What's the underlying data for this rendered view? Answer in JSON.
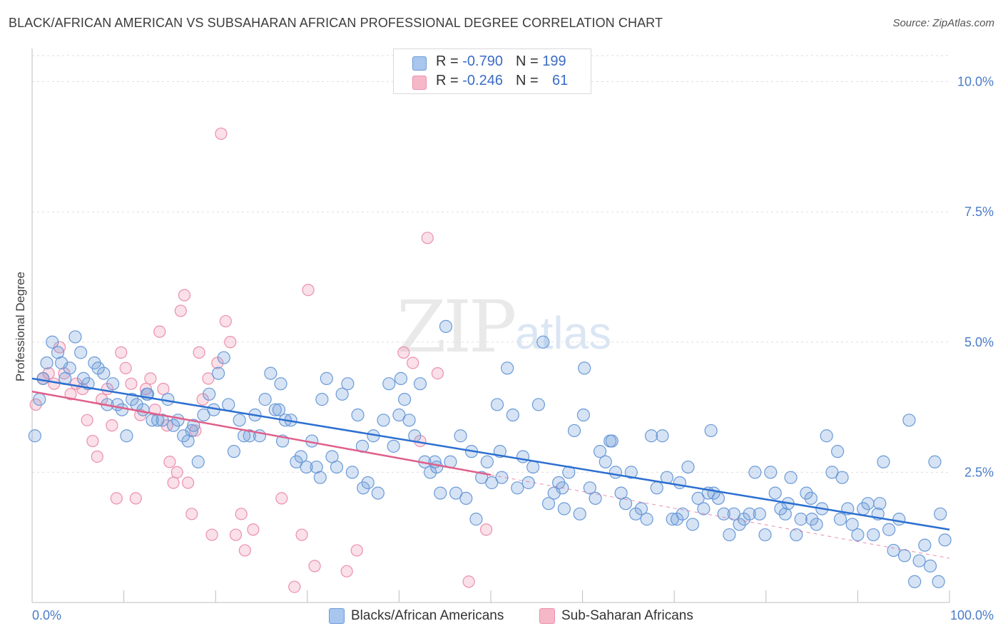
{
  "title": "BLACK/AFRICAN AMERICAN VS SUBSAHARAN AFRICAN PROFESSIONAL DEGREE CORRELATION CHART",
  "source": "Source: ZipAtlas.com",
  "watermark": {
    "zip": "ZIP",
    "atlas": "atlas"
  },
  "legend": {
    "rows": [
      {
        "r_label": "R = ",
        "r_value": "-0.790",
        "n_label": "N = ",
        "n_value": "199",
        "color": "#a8c6ee"
      },
      {
        "r_label": "R = ",
        "r_value": "-0.246",
        "n_label": "N = ",
        "n_value": "61",
        "color": "#f6b8c9"
      }
    ]
  },
  "bottom_legend": [
    {
      "label": "Blacks/African Americans",
      "color": "#a8c6ee"
    },
    {
      "label": "Sub-Saharan Africans",
      "color": "#f6b8c9"
    }
  ],
  "chart_data": {
    "type": "scatter",
    "ylabel": "Professional Degree",
    "xlabel": "",
    "xlim": [
      0,
      100
    ],
    "ylim": [
      0,
      10.5
    ],
    "x_tick_labels": [
      "0.0%",
      "100.0%"
    ],
    "y_ticks": [
      2.5,
      5.0,
      7.5,
      10.0
    ],
    "y_tick_labels": [
      "2.5%",
      "5.0%",
      "7.5%",
      "10.0%"
    ],
    "grid": true,
    "colors": {
      "blue": "#6a9ad8",
      "blue_line": "#2b6fd0",
      "pink": "#ec8fab",
      "pink_line": "#e05f8a"
    },
    "series": [
      {
        "name": "Blacks/African Americans",
        "trend": {
          "x": [
            0,
            100
          ],
          "y": [
            4.3,
            1.4
          ]
        },
        "points": [
          [
            0.3,
            3.2
          ],
          [
            0.8,
            3.9
          ],
          [
            1.2,
            4.3
          ],
          [
            1.6,
            4.6
          ],
          [
            2.2,
            5.0
          ],
          [
            2.8,
            4.8
          ],
          [
            3.2,
            4.6
          ],
          [
            3.6,
            4.3
          ],
          [
            4.1,
            4.5
          ],
          [
            4.7,
            5.1
          ],
          [
            5.3,
            4.8
          ],
          [
            5.6,
            4.3
          ],
          [
            6.1,
            4.2
          ],
          [
            6.8,
            4.6
          ],
          [
            7.2,
            4.5
          ],
          [
            7.8,
            4.4
          ],
          [
            8.2,
            3.8
          ],
          [
            8.8,
            4.2
          ],
          [
            9.3,
            3.8
          ],
          [
            9.8,
            3.7
          ],
          [
            10.3,
            3.2
          ],
          [
            10.9,
            3.9
          ],
          [
            11.4,
            3.8
          ],
          [
            12.1,
            3.7
          ],
          [
            12.6,
            4.0
          ],
          [
            13.1,
            3.5
          ],
          [
            13.7,
            3.5
          ],
          [
            14.2,
            3.5
          ],
          [
            14.8,
            3.9
          ],
          [
            15.4,
            3.4
          ],
          [
            15.9,
            3.5
          ],
          [
            16.5,
            3.2
          ],
          [
            17.0,
            3.1
          ],
          [
            17.6,
            3.4
          ],
          [
            18.1,
            2.7
          ],
          [
            18.7,
            3.6
          ],
          [
            19.3,
            4.0
          ],
          [
            19.8,
            3.7
          ],
          [
            20.3,
            4.4
          ],
          [
            20.9,
            4.7
          ],
          [
            21.4,
            3.8
          ],
          [
            22.0,
            2.9
          ],
          [
            22.6,
            3.5
          ],
          [
            23.1,
            3.2
          ],
          [
            23.7,
            3.2
          ],
          [
            24.3,
            3.6
          ],
          [
            24.8,
            3.2
          ],
          [
            25.4,
            3.9
          ],
          [
            26.0,
            4.4
          ],
          [
            26.5,
            3.7
          ],
          [
            27.1,
            4.2
          ],
          [
            27.6,
            3.5
          ],
          [
            28.2,
            3.5
          ],
          [
            28.8,
            2.7
          ],
          [
            29.3,
            2.8
          ],
          [
            29.9,
            2.6
          ],
          [
            30.5,
            3.1
          ],
          [
            31.0,
            2.6
          ],
          [
            31.6,
            3.9
          ],
          [
            32.1,
            4.3
          ],
          [
            32.7,
            2.8
          ],
          [
            33.2,
            2.6
          ],
          [
            33.8,
            4.0
          ],
          [
            34.4,
            4.2
          ],
          [
            34.9,
            2.5
          ],
          [
            35.5,
            3.6
          ],
          [
            36.1,
            2.2
          ],
          [
            36.6,
            2.3
          ],
          [
            37.2,
            3.2
          ],
          [
            37.7,
            2.1
          ],
          [
            38.3,
            3.5
          ],
          [
            38.9,
            4.2
          ],
          [
            39.4,
            3.0
          ],
          [
            40.0,
            3.6
          ],
          [
            40.6,
            3.9
          ],
          [
            41.1,
            3.5
          ],
          [
            41.7,
            3.2
          ],
          [
            42.3,
            4.2
          ],
          [
            42.8,
            2.7
          ],
          [
            43.4,
            2.5
          ],
          [
            43.9,
            2.7
          ],
          [
            44.5,
            2.1
          ],
          [
            45.1,
            5.3
          ],
          [
            45.6,
            2.7
          ],
          [
            46.2,
            2.1
          ],
          [
            46.7,
            3.2
          ],
          [
            47.3,
            2.0
          ],
          [
            47.9,
            2.9
          ],
          [
            48.4,
            1.6
          ],
          [
            49.0,
            2.4
          ],
          [
            49.6,
            2.7
          ],
          [
            50.1,
            2.3
          ],
          [
            50.7,
            3.8
          ],
          [
            51.2,
            2.4
          ],
          [
            51.8,
            4.5
          ],
          [
            52.4,
            3.6
          ],
          [
            52.9,
            2.2
          ],
          [
            53.5,
            2.8
          ],
          [
            54.1,
            2.3
          ],
          [
            54.6,
            2.6
          ],
          [
            55.2,
            3.8
          ],
          [
            55.7,
            5.0
          ],
          [
            56.3,
            1.9
          ],
          [
            56.9,
            2.1
          ],
          [
            57.4,
            2.3
          ],
          [
            58.0,
            1.8
          ],
          [
            58.5,
            2.5
          ],
          [
            59.1,
            3.3
          ],
          [
            59.7,
            1.7
          ],
          [
            60.2,
            4.5
          ],
          [
            60.8,
            2.2
          ],
          [
            61.4,
            2.0
          ],
          [
            61.9,
            2.9
          ],
          [
            62.5,
            2.7
          ],
          [
            63.0,
            3.1
          ],
          [
            63.6,
            2.5
          ],
          [
            64.2,
            2.1
          ],
          [
            64.7,
            1.9
          ],
          [
            65.3,
            2.5
          ],
          [
            65.8,
            1.7
          ],
          [
            66.4,
            1.8
          ],
          [
            67.0,
            1.6
          ],
          [
            67.5,
            3.2
          ],
          [
            68.1,
            2.2
          ],
          [
            68.7,
            3.2
          ],
          [
            69.2,
            2.4
          ],
          [
            69.8,
            1.6
          ],
          [
            70.3,
            1.6
          ],
          [
            70.9,
            1.7
          ],
          [
            71.5,
            2.6
          ],
          [
            72.0,
            1.5
          ],
          [
            72.6,
            2.0
          ],
          [
            73.2,
            1.8
          ],
          [
            73.7,
            2.1
          ],
          [
            74.3,
            2.1
          ],
          [
            74.8,
            2.0
          ],
          [
            75.4,
            1.7
          ],
          [
            76.0,
            1.3
          ],
          [
            76.5,
            1.7
          ],
          [
            77.1,
            1.5
          ],
          [
            77.6,
            1.6
          ],
          [
            78.2,
            1.7
          ],
          [
            78.8,
            2.5
          ],
          [
            79.3,
            1.7
          ],
          [
            79.9,
            1.3
          ],
          [
            80.5,
            2.5
          ],
          [
            81.0,
            2.1
          ],
          [
            81.6,
            1.8
          ],
          [
            82.1,
            1.7
          ],
          [
            82.7,
            2.4
          ],
          [
            83.3,
            1.3
          ],
          [
            83.8,
            1.6
          ],
          [
            84.4,
            2.1
          ],
          [
            84.9,
            2.0
          ],
          [
            85.5,
            1.5
          ],
          [
            86.1,
            1.8
          ],
          [
            86.6,
            3.2
          ],
          [
            87.2,
            2.5
          ],
          [
            87.8,
            2.9
          ],
          [
            88.3,
            2.4
          ],
          [
            88.9,
            1.8
          ],
          [
            89.4,
            1.5
          ],
          [
            90.0,
            1.3
          ],
          [
            90.6,
            1.8
          ],
          [
            91.1,
            1.9
          ],
          [
            91.7,
            1.3
          ],
          [
            92.2,
            1.7
          ],
          [
            92.8,
            2.7
          ],
          [
            93.4,
            1.4
          ],
          [
            93.9,
            1.0
          ],
          [
            94.5,
            1.6
          ],
          [
            95.1,
            0.9
          ],
          [
            95.6,
            3.5
          ],
          [
            96.2,
            0.4
          ],
          [
            96.7,
            0.8
          ],
          [
            97.3,
            1.1
          ],
          [
            97.9,
            0.7
          ],
          [
            98.4,
            2.7
          ],
          [
            99.0,
            1.7
          ],
          [
            99.5,
            1.2
          ],
          [
            12.5,
            4.0
          ],
          [
            26.9,
            3.7
          ],
          [
            36.0,
            3.0
          ],
          [
            40.2,
            4.3
          ],
          [
            51.0,
            2.9
          ],
          [
            63.2,
            3.1
          ],
          [
            70.6,
            2.3
          ],
          [
            82.4,
            1.9
          ],
          [
            88.1,
            1.6
          ],
          [
            98.8,
            0.4
          ],
          [
            27.3,
            3.1
          ],
          [
            31.4,
            2.4
          ],
          [
            44.1,
            2.6
          ],
          [
            57.8,
            2.2
          ],
          [
            60.1,
            3.6
          ],
          [
            74.0,
            3.3
          ],
          [
            85.0,
            1.6
          ],
          [
            92.4,
            1.9
          ],
          [
            17.4,
            3.3
          ]
        ]
      },
      {
        "name": "Sub-Saharan Africans",
        "trend": {
          "x": [
            0,
            50
          ],
          "y": [
            4.05,
            2.45
          ]
        },
        "trend_dashed": {
          "x": [
            50,
            100
          ],
          "y": [
            2.45,
            0.85
          ]
        },
        "points": [
          [
            0.4,
            3.8
          ],
          [
            1.2,
            4.3
          ],
          [
            1.8,
            4.4
          ],
          [
            2.4,
            4.2
          ],
          [
            3.0,
            4.9
          ],
          [
            3.5,
            4.4
          ],
          [
            4.2,
            4.0
          ],
          [
            4.8,
            4.2
          ],
          [
            5.5,
            4.1
          ],
          [
            6.0,
            3.5
          ],
          [
            6.6,
            3.1
          ],
          [
            7.1,
            2.8
          ],
          [
            7.6,
            3.9
          ],
          [
            8.2,
            4.1
          ],
          [
            8.7,
            3.4
          ],
          [
            9.2,
            2.0
          ],
          [
            9.7,
            4.8
          ],
          [
            10.2,
            4.5
          ],
          [
            10.8,
            4.2
          ],
          [
            11.3,
            2.0
          ],
          [
            11.8,
            3.6
          ],
          [
            12.4,
            4.1
          ],
          [
            12.9,
            4.3
          ],
          [
            13.4,
            3.7
          ],
          [
            13.9,
            5.2
          ],
          [
            14.3,
            4.1
          ],
          [
            14.7,
            3.4
          ],
          [
            15.0,
            2.7
          ],
          [
            15.4,
            2.3
          ],
          [
            15.8,
            2.5
          ],
          [
            16.2,
            5.6
          ],
          [
            16.6,
            5.9
          ],
          [
            17.0,
            2.3
          ],
          [
            17.4,
            1.7
          ],
          [
            17.8,
            3.3
          ],
          [
            18.2,
            4.8
          ],
          [
            18.6,
            3.9
          ],
          [
            19.2,
            4.3
          ],
          [
            19.6,
            1.3
          ],
          [
            20.2,
            4.6
          ],
          [
            20.6,
            9.0
          ],
          [
            21.1,
            5.4
          ],
          [
            21.6,
            5.0
          ],
          [
            22.2,
            1.3
          ],
          [
            22.8,
            1.7
          ],
          [
            23.2,
            1.0
          ],
          [
            24.1,
            1.4
          ],
          [
            27.2,
            2.0
          ],
          [
            28.6,
            0.3
          ],
          [
            29.4,
            1.3
          ],
          [
            30.1,
            6.0
          ],
          [
            30.8,
            0.7
          ],
          [
            34.3,
            0.6
          ],
          [
            35.4,
            1.0
          ],
          [
            40.5,
            4.8
          ],
          [
            41.5,
            4.6
          ],
          [
            42.3,
            3.1
          ],
          [
            43.1,
            7.0
          ],
          [
            44.2,
            4.4
          ],
          [
            47.6,
            0.4
          ],
          [
            49.5,
            1.4
          ]
        ]
      }
    ]
  }
}
